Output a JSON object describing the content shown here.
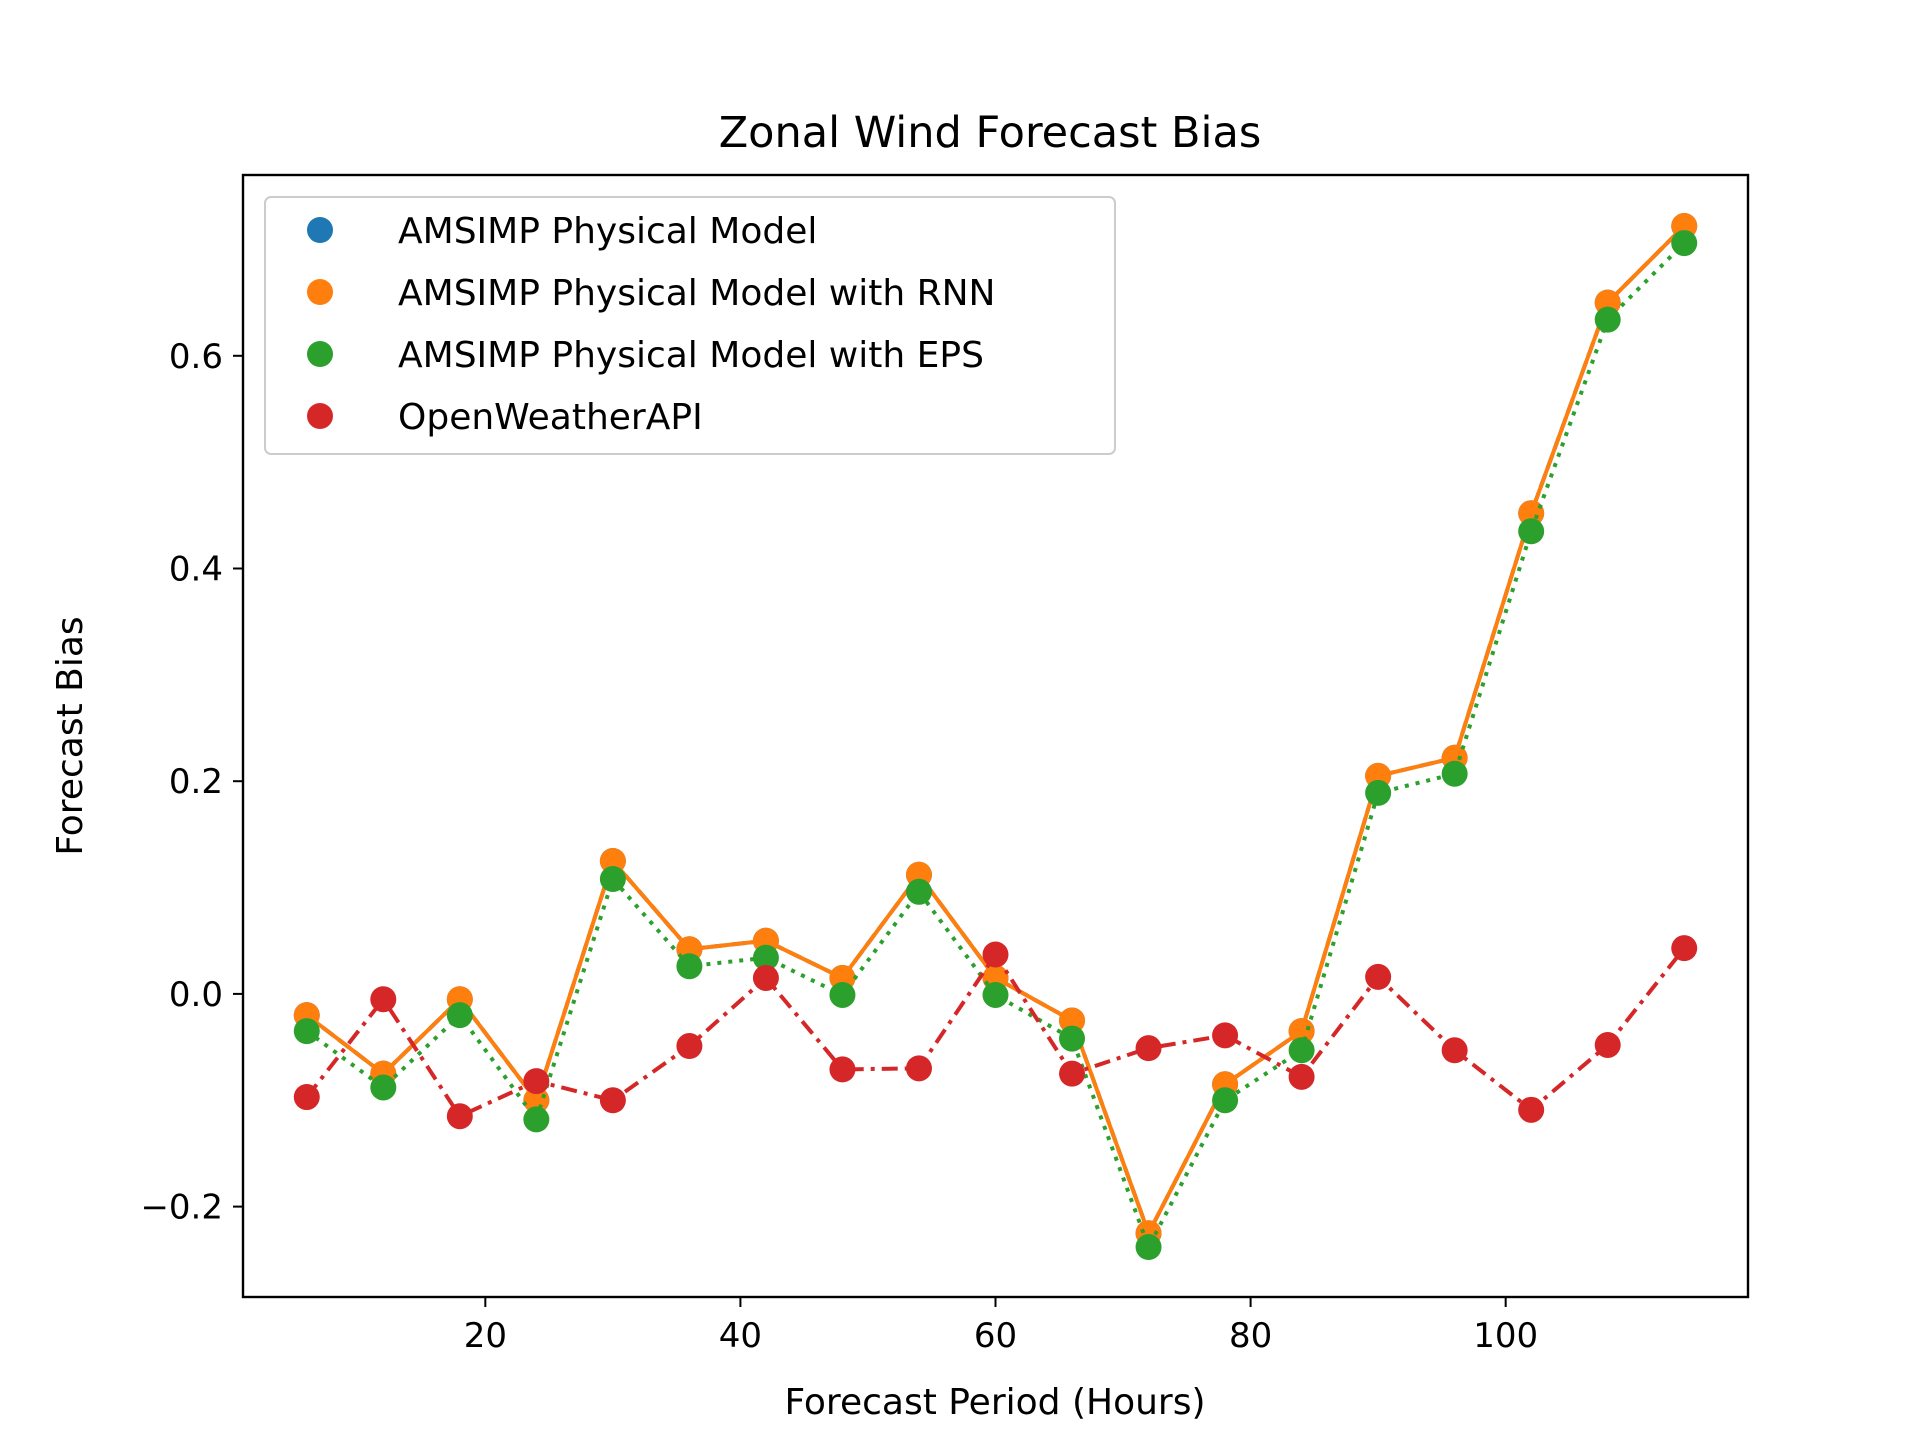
{
  "chart_data": {
    "type": "line",
    "title": "Zonal Wind Forecast Bias",
    "xlabel": "Forecast Period (Hours)",
    "ylabel": "Forecast Bias",
    "xlim": [
      1,
      119
    ],
    "ylim": [
      -0.285,
      0.77
    ],
    "xticks": [
      20,
      40,
      60,
      80,
      100
    ],
    "xtick_labels": [
      "20",
      "40",
      "60",
      "80",
      "100"
    ],
    "yticks": [
      -0.2,
      0.0,
      0.2,
      0.4,
      0.6
    ],
    "ytick_labels": [
      "−0.2",
      "0.0",
      "0.2",
      "0.4",
      "0.6"
    ],
    "grid": false,
    "legend_position": "upper-left",
    "x": [
      6,
      12,
      18,
      24,
      30,
      36,
      42,
      48,
      54,
      60,
      66,
      72,
      78,
      84,
      90,
      96,
      102,
      108,
      114
    ],
    "series": [
      {
        "name": "AMSIMP Physical Model",
        "color": "#1f77b4",
        "linestyle": "dashed",
        "values": [
          -0.02,
          -0.075,
          -0.005,
          -0.1,
          0.125,
          0.042,
          0.05,
          0.015,
          0.112,
          0.015,
          -0.025,
          -0.225,
          -0.085,
          -0.035,
          0.205,
          0.222,
          0.452,
          0.65,
          0.722
        ]
      },
      {
        "name": "AMSIMP Physical Model with RNN",
        "color": "#ff7f0e",
        "linestyle": "solid",
        "values": [
          -0.02,
          -0.075,
          -0.005,
          -0.1,
          0.125,
          0.042,
          0.05,
          0.015,
          0.112,
          0.015,
          -0.025,
          -0.225,
          -0.085,
          -0.035,
          0.205,
          0.222,
          0.452,
          0.65,
          0.722
        ]
      },
      {
        "name": "AMSIMP Physical Model with EPS",
        "color": "#2ca02c",
        "linestyle": "dotted",
        "values": [
          -0.035,
          -0.088,
          -0.02,
          -0.118,
          0.108,
          0.026,
          0.034,
          -0.001,
          0.096,
          -0.001,
          -0.042,
          -0.238,
          -0.1,
          -0.053,
          0.189,
          0.207,
          0.435,
          0.634,
          0.706
        ]
      },
      {
        "name": "OpenWeatherAPI",
        "color": "#d62728",
        "linestyle": "dashdot",
        "values": [
          -0.097,
          -0.005,
          -0.115,
          -0.082,
          -0.1,
          -0.049,
          0.015,
          -0.071,
          -0.07,
          0.037,
          -0.075,
          -0.051,
          -0.039,
          -0.078,
          0.016,
          -0.053,
          -0.109,
          -0.048,
          0.043
        ]
      }
    ]
  }
}
